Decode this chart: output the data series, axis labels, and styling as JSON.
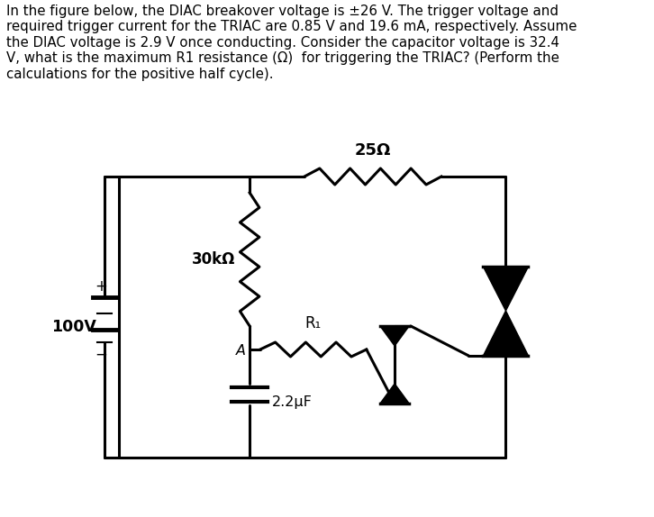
{
  "title_text": "In the figure below, the DIAC breakover voltage is ±26 V. The trigger voltage and\nrequired trigger current for the TRIAC are 0.85 V and 19.6 mA, respectively. Assume\nthe DIAC voltage is 2.9 V once conducting. Consider the capacitor voltage is 32.4\nV, what is the maximum R1 resistance (Ω)  for triggering the TRIAC? (Perform the\ncalculations for the positive half cycle).",
  "bg_color": "#ffffff",
  "text_color": "#000000",
  "fig_width": 7.26,
  "fig_height": 5.74,
  "label_25ohm": "25Ω",
  "label_30kohm": "30kΩ",
  "label_R1": "R₁",
  "label_A": "A",
  "label_100V": "100V",
  "label_cap": "2.2μF",
  "label_plus": "+",
  "label_minus": "−"
}
